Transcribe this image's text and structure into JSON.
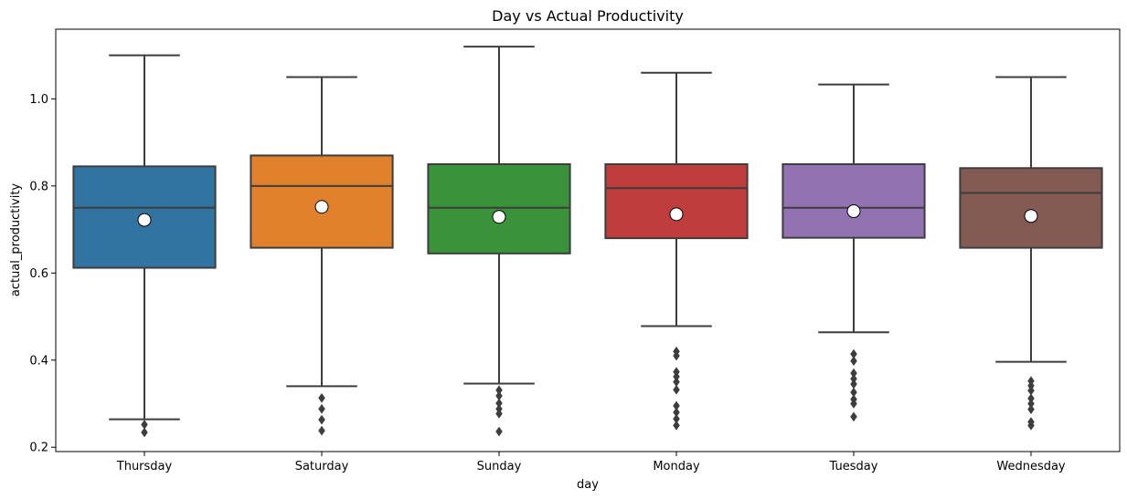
{
  "chart_data": {
    "type": "box",
    "title": "Day vs Actual Productivity",
    "xlabel": "day",
    "ylabel": "actual_productivity",
    "ylim": [
      0.19,
      1.16
    ],
    "yticks": [
      "0.2",
      "0.4",
      "0.6",
      "0.8",
      "1.0"
    ],
    "ytick_values": [
      0.2,
      0.4,
      0.6,
      0.8,
      1.0
    ],
    "grid": false,
    "legend": "none",
    "categories": [
      "Thursday",
      "Saturday",
      "Sunday",
      "Monday",
      "Tuesday",
      "Wednesday"
    ],
    "colors": [
      "#3274a1",
      "#e1812c",
      "#3a923a",
      "#c03d3e",
      "#9372b2",
      "#845b53"
    ],
    "edge_color": "#3d3d3d",
    "mean_marker_color": "#ffffff",
    "boxes": [
      {
        "category": "Thursday",
        "whisker_low": 0.264,
        "q1": 0.612,
        "median": 0.75,
        "q3": 0.845,
        "whisker_high": 1.1,
        "mean": 0.722,
        "outliers": [
          0.252,
          0.234
        ]
      },
      {
        "category": "Saturday",
        "whisker_low": 0.34,
        "q1": 0.658,
        "median": 0.8,
        "q3": 0.87,
        "whisker_high": 1.05,
        "mean": 0.752,
        "outliers": [
          0.313,
          0.288,
          0.263,
          0.238
        ]
      },
      {
        "category": "Sunday",
        "whisker_low": 0.346,
        "q1": 0.645,
        "median": 0.75,
        "q3": 0.85,
        "whisker_high": 1.12,
        "mean": 0.729,
        "outliers": [
          0.331,
          0.318,
          0.301,
          0.288,
          0.277,
          0.236
        ]
      },
      {
        "category": "Monday",
        "whisker_low": 0.478,
        "q1": 0.68,
        "median": 0.795,
        "q3": 0.85,
        "whisker_high": 1.06,
        "mean": 0.735,
        "outliers": [
          0.42,
          0.41,
          0.373,
          0.362,
          0.35,
          0.332,
          0.295,
          0.28,
          0.265,
          0.25
        ]
      },
      {
        "category": "Tuesday",
        "whisker_low": 0.464,
        "q1": 0.681,
        "median": 0.75,
        "q3": 0.85,
        "whisker_high": 1.033,
        "mean": 0.742,
        "outliers": [
          0.414,
          0.398,
          0.37,
          0.357,
          0.345,
          0.326,
          0.31,
          0.3,
          0.27
        ]
      },
      {
        "category": "Wednesday",
        "whisker_low": 0.396,
        "q1": 0.658,
        "median": 0.784,
        "q3": 0.841,
        "whisker_high": 1.05,
        "mean": 0.731,
        "outliers": [
          0.352,
          0.341,
          0.33,
          0.312,
          0.3,
          0.287,
          0.258,
          0.25
        ]
      }
    ]
  }
}
